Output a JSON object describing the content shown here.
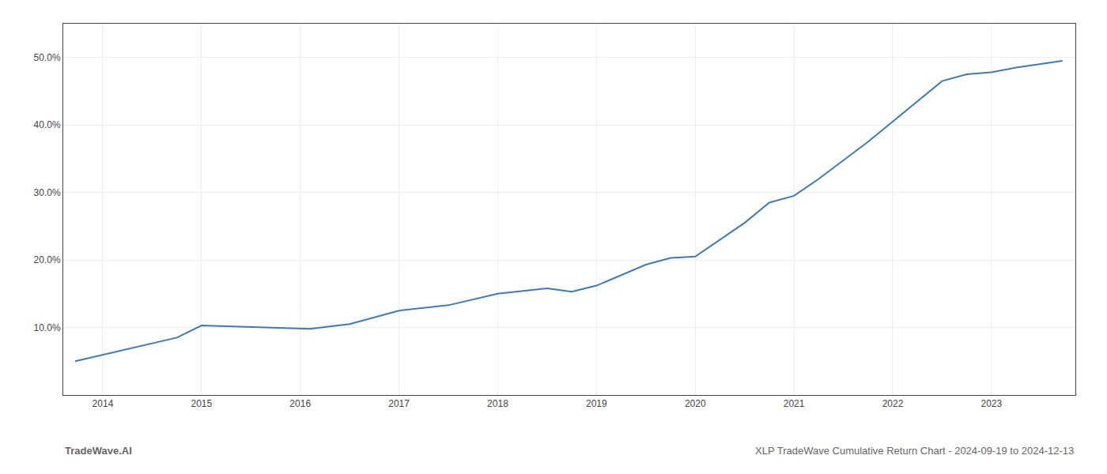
{
  "chart_data": {
    "type": "line",
    "x": [
      2013.72,
      2014.75,
      2015.0,
      2015.75,
      2016.1,
      2016.5,
      2017.0,
      2017.5,
      2018.0,
      2018.5,
      2018.75,
      2019.0,
      2019.5,
      2019.75,
      2020.0,
      2020.5,
      2020.75,
      2021.0,
      2021.25,
      2021.75,
      2022.0,
      2022.25,
      2022.5,
      2022.75,
      2023.0,
      2023.25,
      2023.72
    ],
    "values": [
      5.0,
      8.5,
      10.3,
      10.0,
      9.8,
      10.5,
      12.5,
      13.3,
      15.0,
      15.8,
      15.3,
      16.2,
      19.3,
      20.3,
      20.5,
      25.5,
      28.5,
      29.5,
      32.0,
      37.5,
      40.5,
      43.5,
      46.5,
      47.5,
      47.8,
      48.5,
      49.5
    ],
    "color": "#3a7abf",
    "xlim": [
      2013.6,
      2023.85
    ],
    "ylim": [
      0,
      55
    ],
    "xticks": [
      2014,
      2015,
      2016,
      2017,
      2018,
      2019,
      2020,
      2021,
      2022,
      2023
    ],
    "yticks": [
      {
        "value": 10.0,
        "label": "10.0%"
      },
      {
        "value": 20.0,
        "label": "20.0%"
      },
      {
        "value": 30.0,
        "label": "30.0%"
      },
      {
        "value": 40.0,
        "label": "40.0%"
      },
      {
        "value": 50.0,
        "label": "50.0%"
      }
    ],
    "grid": true,
    "annotations": [
      "TradeWave.AI",
      "XLP TradeWave Cumulative Return Chart - 2024-09-19 to 2024-12-13"
    ]
  }
}
